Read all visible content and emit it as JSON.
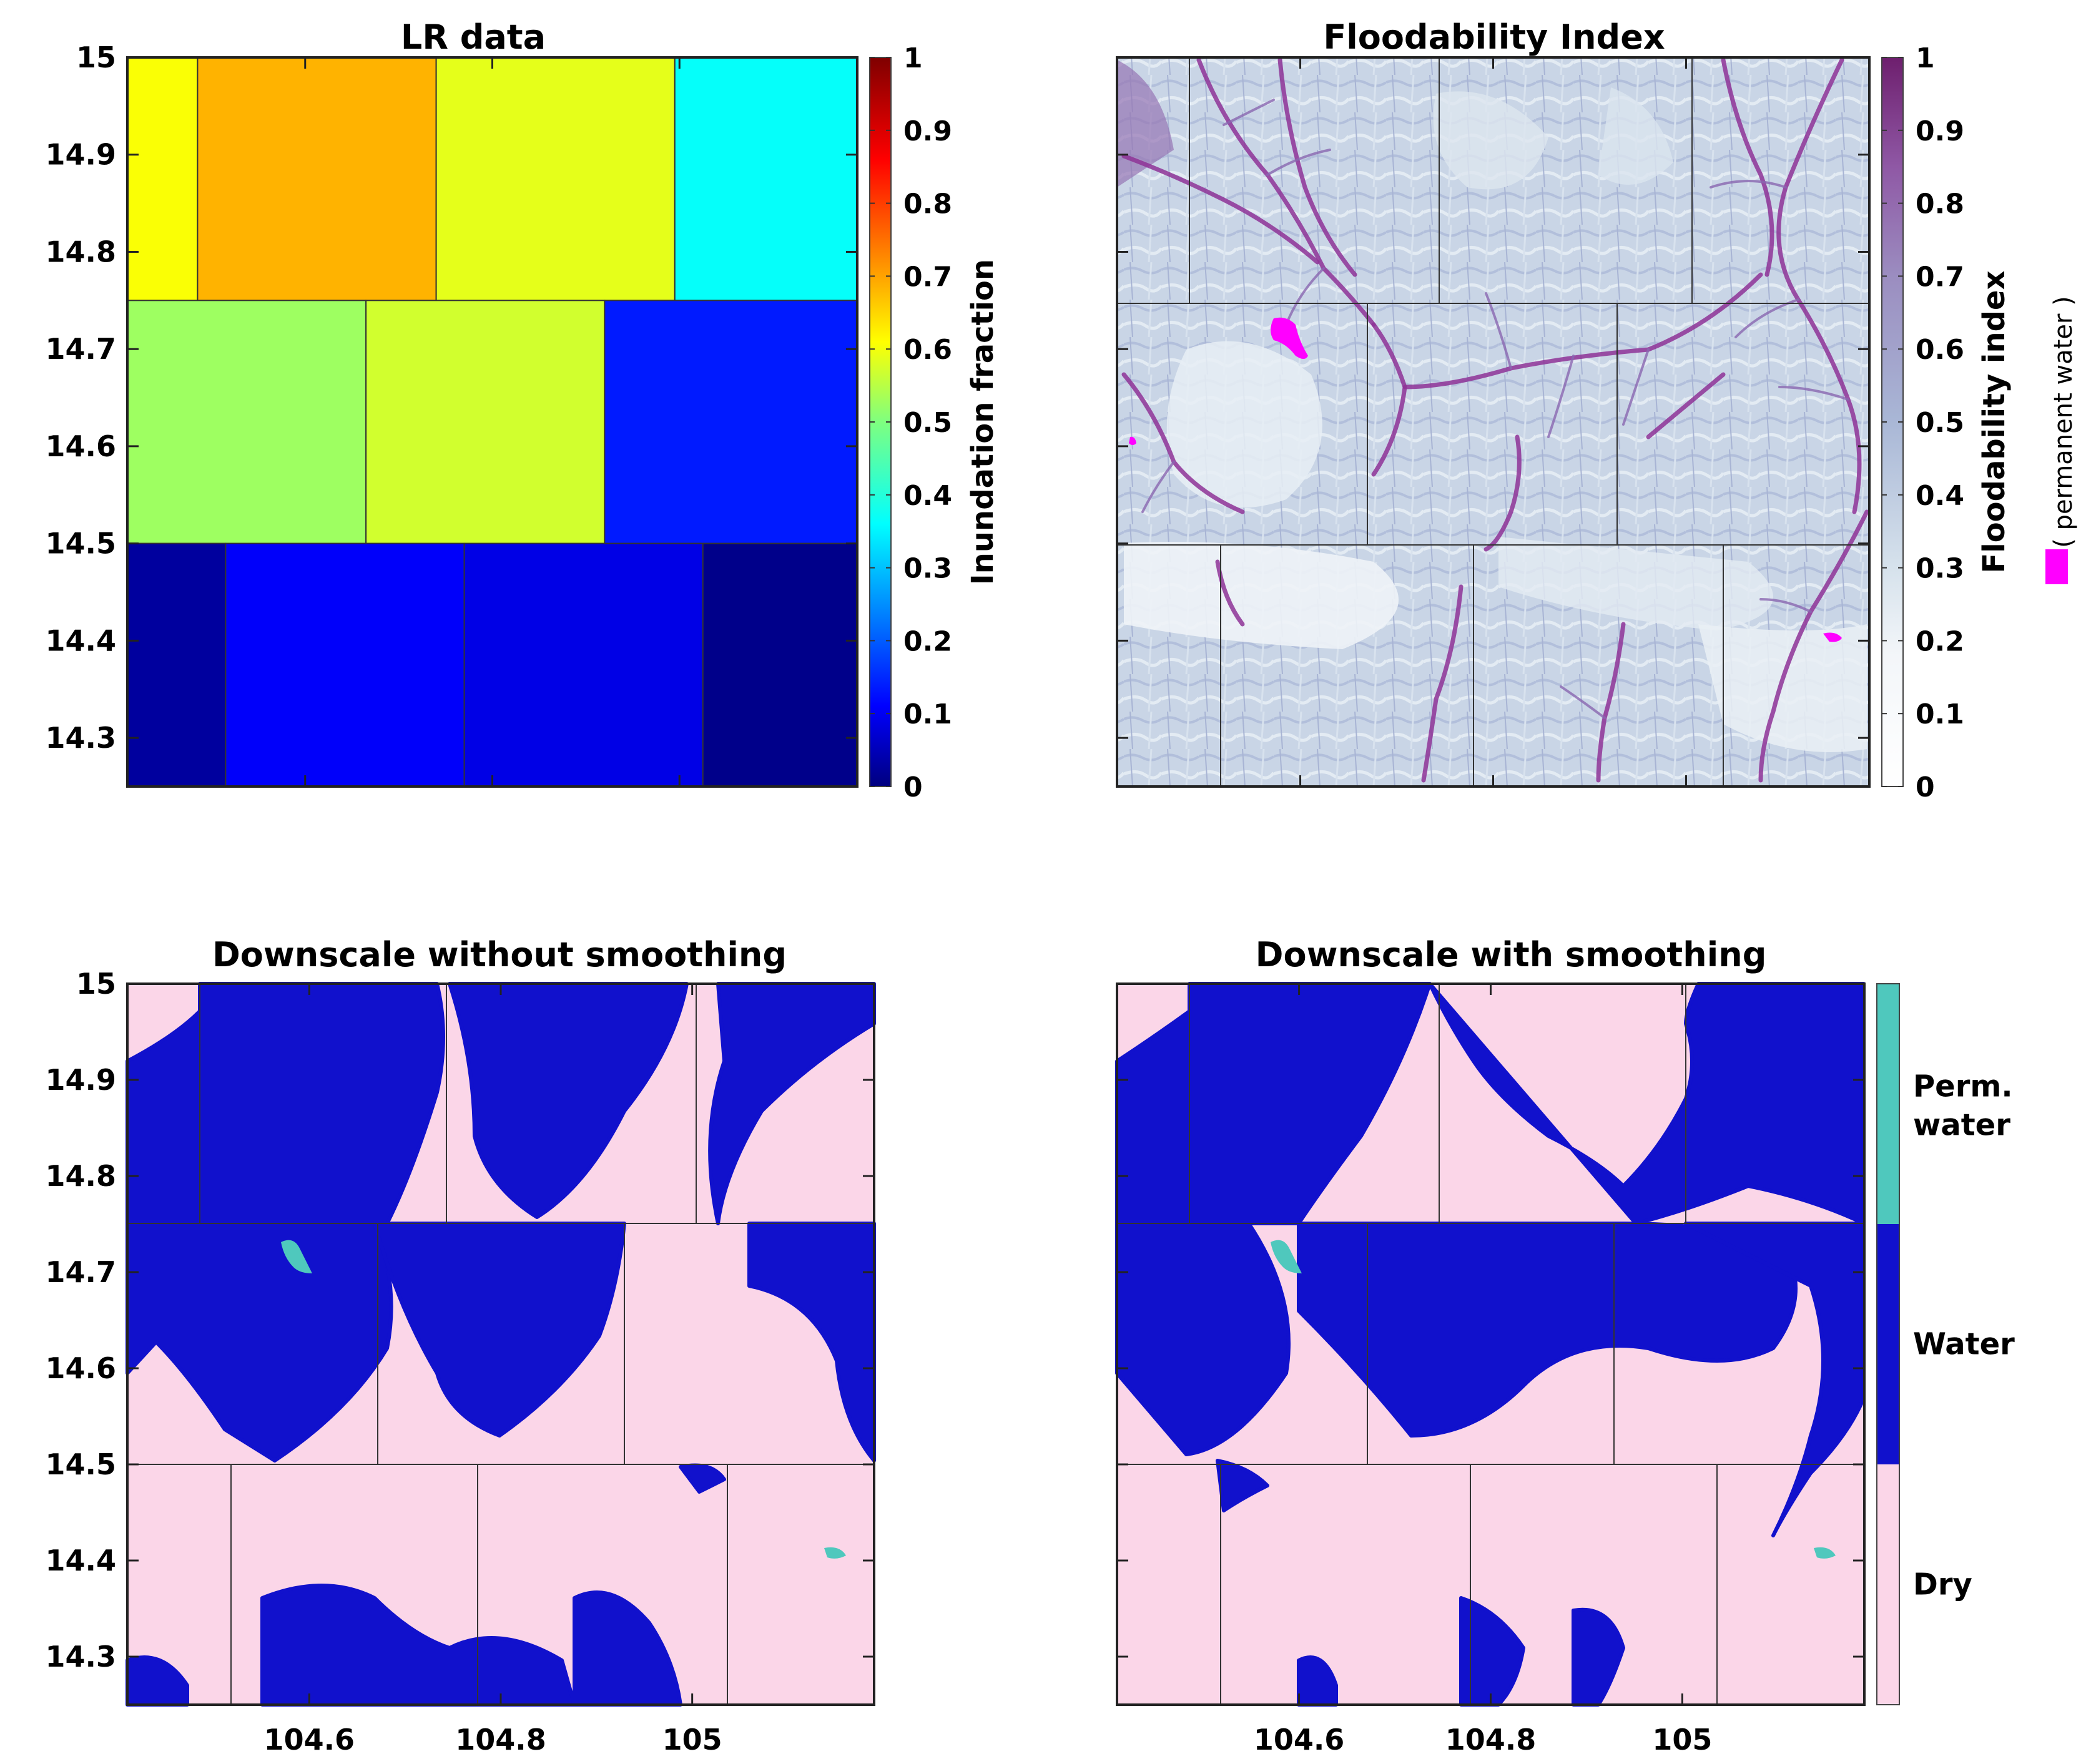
{
  "chart_data": [
    {
      "id": "lr",
      "type": "heatmap",
      "title": "LR data",
      "xlim": [
        104.41,
        105.19
      ],
      "ylim": [
        14.25,
        15.0
      ],
      "yticks": [
        "15",
        "14.9",
        "14.8",
        "14.7",
        "14.6",
        "14.5",
        "14.4",
        "14.3"
      ],
      "xticks": [],
      "cells": [
        {
          "row": 0,
          "x0": 104.41,
          "x1": 104.485,
          "value": 0.62
        },
        {
          "row": 0,
          "x0": 104.485,
          "x1": 104.74,
          "value": 0.7
        },
        {
          "row": 0,
          "x0": 104.74,
          "x1": 104.995,
          "value": 0.6
        },
        {
          "row": 0,
          "x0": 104.995,
          "x1": 105.19,
          "value": 0.38
        },
        {
          "row": 1,
          "x0": 104.41,
          "x1": 104.665,
          "value": 0.53
        },
        {
          "row": 1,
          "x0": 104.665,
          "x1": 104.92,
          "value": 0.58
        },
        {
          "row": 1,
          "x0": 104.92,
          "x1": 105.19,
          "value": 0.15
        },
        {
          "row": 2,
          "x0": 104.41,
          "x1": 104.515,
          "value": 0.03
        },
        {
          "row": 2,
          "x0": 104.515,
          "x1": 104.77,
          "value": 0.12
        },
        {
          "row": 2,
          "x0": 104.77,
          "x1": 105.025,
          "value": 0.1
        },
        {
          "row": 2,
          "x0": 105.025,
          "x1": 105.19,
          "value": 0.01
        }
      ],
      "row_bounds": [
        [
          14.75,
          15.0
        ],
        [
          14.5,
          14.75
        ],
        [
          14.25,
          14.5
        ]
      ],
      "colorbar": {
        "label": "Inundation fraction",
        "colormap": "jet",
        "range": [
          0,
          1
        ],
        "ticks": [
          "0",
          "0.1",
          "0.2",
          "0.3",
          "0.4",
          "0.5",
          "0.6",
          "0.7",
          "0.8",
          "0.9",
          "1"
        ]
      }
    },
    {
      "id": "flood",
      "type": "heatmap",
      "title": "Floodability Index",
      "xlim": [
        104.41,
        105.19
      ],
      "ylim": [
        14.25,
        15.0
      ],
      "yticks": [],
      "xticks": [],
      "colorbar": {
        "label": "Floodability index",
        "colormap": "white-to-purple",
        "range": [
          0,
          1
        ],
        "ticks": [
          "0",
          "0.1",
          "0.2",
          "0.3",
          "0.4",
          "0.5",
          "0.6",
          "0.7",
          "0.8",
          "0.9",
          "1"
        ]
      },
      "permanent_water_label": "( permanent water )",
      "permanent_water_color": "#ff00ff"
    },
    {
      "id": "nosmooth",
      "type": "heatmap",
      "title": "Downscale without smoothing",
      "xlim": [
        104.41,
        105.19
      ],
      "ylim": [
        14.25,
        15.0
      ],
      "yticks": [
        "15",
        "14.9",
        "14.8",
        "14.7",
        "14.6",
        "14.5",
        "14.4",
        "14.3"
      ],
      "xticks": [
        "104.6",
        "104.8",
        "105"
      ]
    },
    {
      "id": "smooth",
      "type": "heatmap",
      "title": "Downscale with smoothing",
      "xlim": [
        104.41,
        105.19
      ],
      "ylim": [
        14.25,
        15.0
      ],
      "yticks": [],
      "xticks": [
        "104.6",
        "104.8",
        "105"
      ],
      "legend": [
        {
          "label": "Perm. water",
          "color": "#4fc8bd"
        },
        {
          "label": "Water",
          "color": "#1111cc"
        },
        {
          "label": "Dry",
          "color": "#fbd6e8"
        }
      ]
    }
  ],
  "colors": {
    "dry": "#fbd6e8",
    "water": "#1111cc",
    "perm_water": "#4fc8bd",
    "flood_light": "#dce8f0",
    "flood_mid": "#9aa9cc",
    "flood_dark": "#8a2e90"
  }
}
